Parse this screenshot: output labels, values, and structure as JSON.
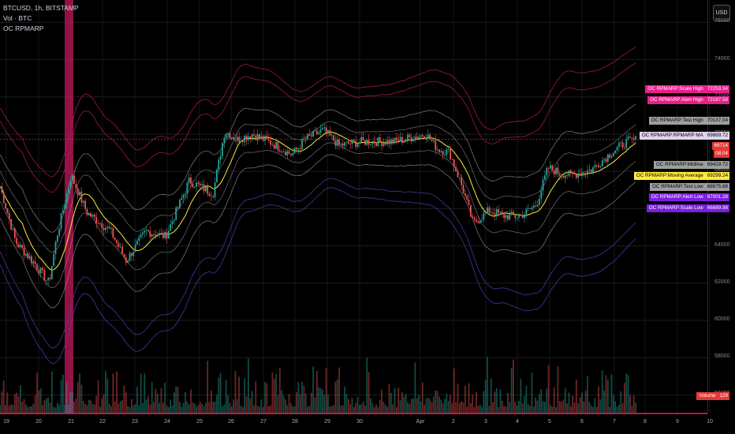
{
  "legend": {
    "symbol_line": "BTCUSD, 1h, BITSTAMP",
    "vol_line": "Vol · BTC",
    "indicator_line": "OC RPMARP"
  },
  "currency_button": "USD",
  "y_axis": {
    "ticks": [
      "76000",
      "74000",
      "72000",
      "70000",
      "68000",
      "66000",
      "64000",
      "62000",
      "60000",
      "58000",
      "56000"
    ],
    "range": [
      55000,
      77200
    ]
  },
  "x_axis": {
    "ticks": [
      "19",
      "20",
      "21",
      "22",
      "23",
      "24",
      "25",
      "26",
      "27",
      "28",
      "29",
      "30",
      "Apr",
      "2",
      "3",
      "4",
      "5",
      "6",
      "7",
      "8",
      "9",
      "10"
    ]
  },
  "price_tags": [
    {
      "name": "OC RPMARP:Scale High",
      "value": "72253.34",
      "color": "#e91e8c",
      "text": "#ffffff"
    },
    {
      "name": "OC RPMARP:Alert High",
      "value": "72187.58",
      "color": "#e91e8c",
      "text": "#ffffff"
    },
    {
      "name": "OC RPMARP:Test High",
      "value": "70137.04",
      "color": "#9e9e9e",
      "text": "#000000"
    },
    {
      "name": "OC RPMARP:RPMARP MA",
      "value": "69869.72",
      "color": "#e1d3ee",
      "text": "#000000"
    },
    {
      "name": "",
      "value": "69714",
      "color": "#e53935",
      "text": "#ffffff"
    },
    {
      "name": "",
      "value": "08:04",
      "color": "#e53935",
      "text": "#ffffff"
    },
    {
      "name": "OC RPMARP:Midline",
      "value": "69419.72",
      "color": "#9e9e9e",
      "text": "#000000"
    },
    {
      "name": "OC RPMARP:Moving Average",
      "value": "69299.24",
      "color": "#ffeb3b",
      "text": "#000000"
    },
    {
      "name": "OC RPMARP:Test Low",
      "value": "68675.88",
      "color": "#9e9e9e",
      "text": "#000000"
    },
    {
      "name": "OC RPMARP:Alert Low",
      "value": "67001.28",
      "color": "#7b1fe0",
      "text": "#ffffff"
    },
    {
      "name": "OC RPMARP:Scale Low",
      "value": "66689.98",
      "color": "#7b1fe0",
      "text": "#ffffff"
    },
    {
      "name": "Volume",
      "value": "129",
      "color": "#e53935",
      "text": "#ffffff"
    }
  ],
  "colors": {
    "up": "#26a69a",
    "down": "#ef5350",
    "ma": "#ffeb3b",
    "band_outer": "#b2185d",
    "band_low": "#5e35b1",
    "band_test": "#9e9e9e",
    "highlight": "#c2185b"
  },
  "chart_data": {
    "type": "candlestick",
    "anchor_prices": [
      [
        0,
        67200
      ],
      [
        20,
        64200
      ],
      [
        45,
        63000
      ],
      [
        62,
        62000
      ],
      [
        72,
        64500
      ],
      [
        90,
        67800
      ],
      [
        110,
        65800
      ],
      [
        140,
        64800
      ],
      [
        160,
        63200
      ],
      [
        185,
        64800
      ],
      [
        210,
        64500
      ],
      [
        240,
        67500
      ],
      [
        270,
        66800
      ],
      [
        285,
        70200
      ],
      [
        300,
        69700
      ],
      [
        320,
        70000
      ],
      [
        345,
        69500
      ],
      [
        370,
        68900
      ],
      [
        390,
        69800
      ],
      [
        410,
        70200
      ],
      [
        430,
        69400
      ],
      [
        460,
        69600
      ],
      [
        500,
        69600
      ],
      [
        520,
        69800
      ],
      [
        540,
        70000
      ],
      [
        555,
        69200
      ],
      [
        570,
        69000
      ],
      [
        585,
        67300
      ],
      [
        600,
        65200
      ],
      [
        620,
        65900
      ],
      [
        640,
        65600
      ],
      [
        660,
        65600
      ],
      [
        680,
        66200
      ],
      [
        695,
        68200
      ],
      [
        710,
        67900
      ],
      [
        725,
        67800
      ],
      [
        750,
        68100
      ],
      [
        775,
        69000
      ],
      [
        795,
        69600
      ],
      [
        808,
        69714
      ]
    ]
  }
}
